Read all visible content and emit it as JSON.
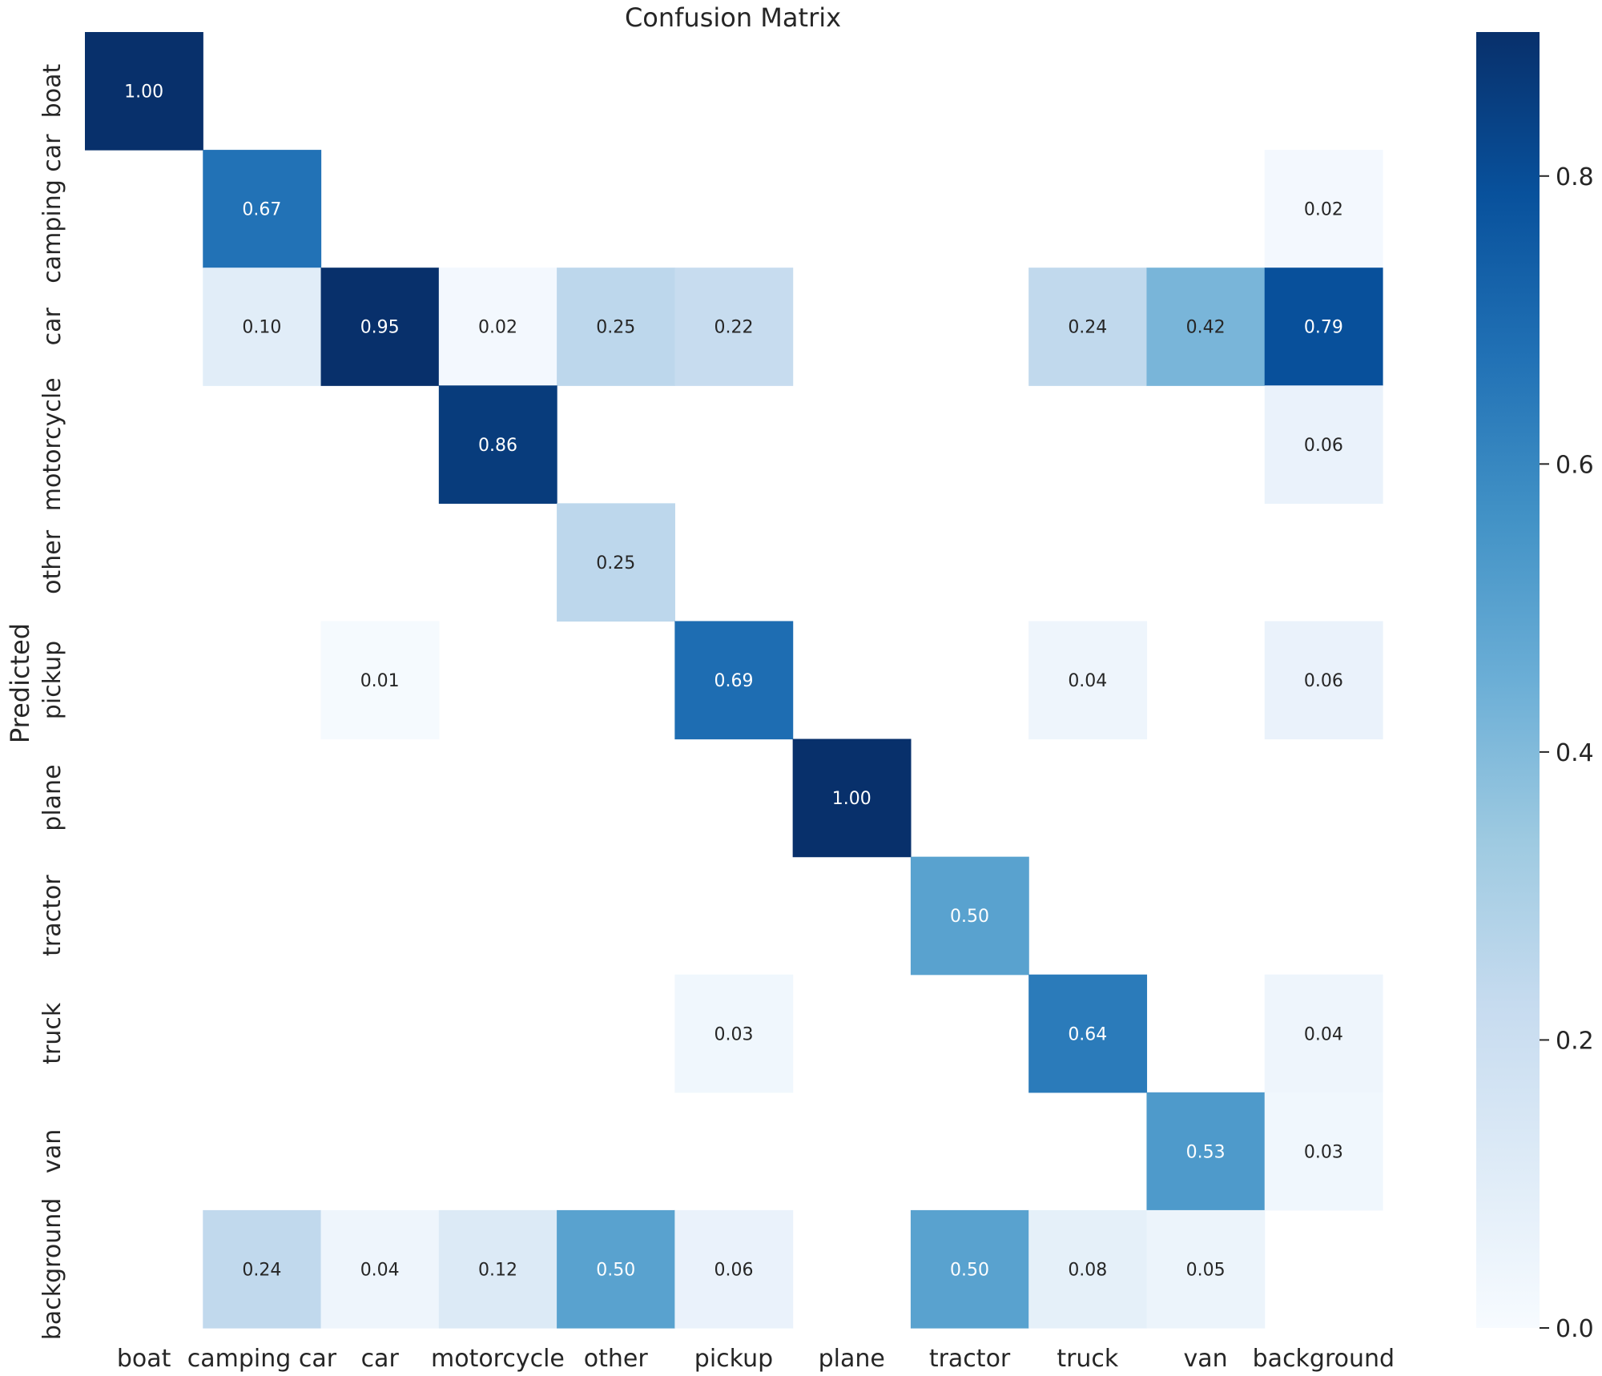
{
  "chart_data": {
    "type": "heatmap",
    "title": "Confusion Matrix",
    "ylabel": "Predicted",
    "xlabel": "",
    "x_categories": [
      "boat",
      "camping car",
      "car",
      "motorcycle",
      "other",
      "pickup",
      "plane",
      "tractor",
      "truck",
      "van",
      "background"
    ],
    "y_categories": [
      "boat",
      "camping car",
      "car",
      "motorcycle",
      "other",
      "pickup",
      "plane",
      "tractor",
      "truck",
      "van",
      "background"
    ],
    "values": [
      [
        1.0,
        null,
        null,
        null,
        null,
        null,
        null,
        null,
        null,
        null,
        null
      ],
      [
        null,
        0.67,
        null,
        null,
        null,
        null,
        null,
        null,
        null,
        null,
        0.02
      ],
      [
        null,
        0.1,
        0.95,
        0.02,
        0.25,
        0.22,
        null,
        null,
        0.24,
        0.42,
        0.79
      ],
      [
        null,
        null,
        null,
        0.86,
        null,
        null,
        null,
        null,
        null,
        null,
        0.06
      ],
      [
        null,
        null,
        null,
        null,
        0.25,
        null,
        null,
        null,
        null,
        null,
        null
      ],
      [
        null,
        null,
        0.01,
        null,
        null,
        0.69,
        null,
        null,
        0.04,
        null,
        0.06
      ],
      [
        null,
        null,
        null,
        null,
        null,
        null,
        1.0,
        null,
        null,
        null,
        null
      ],
      [
        null,
        null,
        null,
        null,
        null,
        null,
        null,
        0.5,
        null,
        null,
        null
      ],
      [
        null,
        null,
        null,
        null,
        null,
        0.03,
        null,
        null,
        0.64,
        null,
        0.04
      ],
      [
        null,
        null,
        null,
        null,
        null,
        null,
        null,
        null,
        null,
        0.53,
        0.03
      ],
      [
        null,
        0.24,
        0.04,
        0.12,
        0.5,
        0.06,
        null,
        0.5,
        0.08,
        0.05,
        null
      ]
    ],
    "value_format": "0.00",
    "colormap": "Blues",
    "colorbar": {
      "ticks": [
        0.0,
        0.2,
        0.4,
        0.6,
        0.8
      ],
      "tick_labels": [
        "0.0",
        "0.2",
        "0.4",
        "0.6",
        "0.8"
      ],
      "range": [
        0.0,
        0.9
      ],
      "position": "right"
    }
  }
}
